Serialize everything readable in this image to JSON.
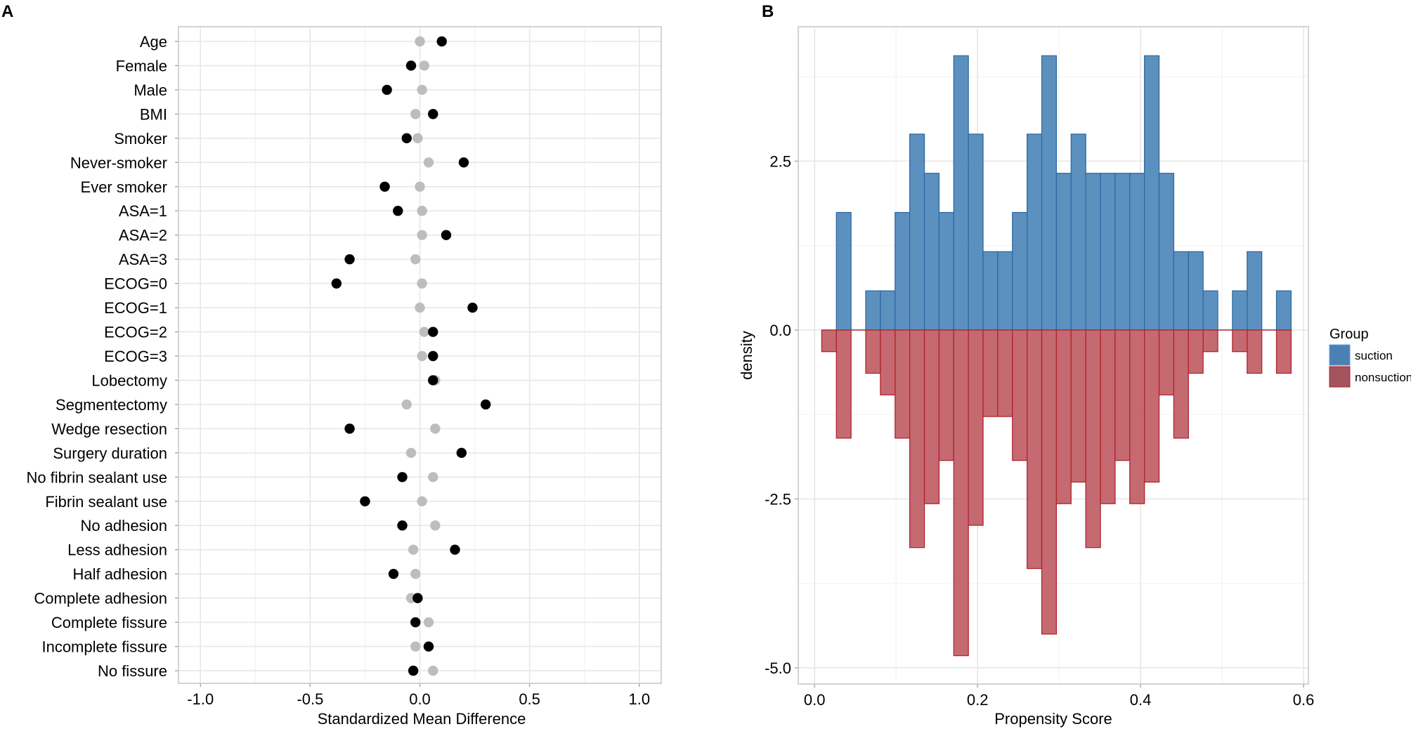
{
  "panels": {
    "a_label": "A",
    "b_label": "B"
  },
  "chart_data": [
    {
      "type": "scatter",
      "panel": "A",
      "xlabel": "Standardized Mean Difference",
      "ylabel": "",
      "xlim": [
        -1.1,
        1.1
      ],
      "xticks": [
        -1.0,
        -0.5,
        0.0,
        0.5,
        1.0
      ],
      "xtick_labels": [
        "-1.0",
        "-0.5",
        "0.0",
        "0.5",
        "1.0"
      ],
      "grid": true,
      "categories": [
        "Age",
        "Female",
        "Male",
        "BMI",
        "Smoker",
        "Never-smoker",
        "Ever smoker",
        "ASA=1",
        "ASA=2",
        "ASA=3",
        "ECOG=0",
        "ECOG=1",
        "ECOG=2",
        "ECOG=3",
        "Lobectomy",
        "Segmentectomy",
        "Wedge resection",
        "Surgery duration",
        "No fibrin sealant use",
        "Fibrin sealant use",
        "No adhesion",
        "Less adhesion",
        "Half adhesion",
        "Complete adhesion",
        "Complete fissure",
        "Incomplete fissure",
        "No fissure"
      ],
      "series": [
        {
          "color": "#bdbdbd",
          "values": [
            0.0,
            0.02,
            0.01,
            -0.02,
            -0.01,
            0.04,
            0.0,
            0.01,
            0.01,
            -0.02,
            0.01,
            0.0,
            0.02,
            0.01,
            0.07,
            -0.06,
            0.07,
            -0.04,
            0.06,
            0.01,
            0.07,
            -0.03,
            -0.02,
            -0.04,
            0.04,
            -0.02,
            0.06
          ]
        },
        {
          "color": "#000000",
          "values": [
            0.1,
            -0.04,
            -0.15,
            0.06,
            -0.06,
            0.2,
            -0.16,
            -0.1,
            0.12,
            -0.32,
            -0.38,
            0.24,
            0.06,
            0.06,
            0.06,
            0.3,
            -0.32,
            0.19,
            -0.08,
            -0.25,
            -0.08,
            0.16,
            -0.12,
            -0.01,
            -0.02,
            0.04,
            -0.03
          ]
        }
      ]
    },
    {
      "type": "bar",
      "subtype": "mirrored-histogram",
      "panel": "B",
      "xlabel": "Propensity Score",
      "ylabel": "density",
      "xlim": [
        -0.02,
        0.606
      ],
      "ylim": [
        -5.24,
        4.49
      ],
      "xticks": [
        0.0,
        0.2,
        0.4,
        0.6
      ],
      "xtick_labels": [
        "0.0",
        "0.2",
        "0.4",
        "0.6"
      ],
      "yticks": [
        -5.0,
        -2.5,
        0.0,
        2.5
      ],
      "ytick_labels": [
        "-5.0",
        "-2.5",
        "0.0",
        "2.5"
      ],
      "grid": true,
      "bin_start": 0.0088,
      "bin_width": 0.018,
      "legend": {
        "title": "Group",
        "position": "right"
      },
      "series": [
        {
          "name": "suction",
          "fill": "#4a84b8",
          "stroke": "#2f6aa6",
          "legend_fill": "#4a80b4",
          "values": [
            0,
            1.74,
            0,
            0.58,
            0.58,
            1.74,
            2.9,
            2.32,
            1.74,
            4.06,
            2.9,
            1.16,
            1.16,
            1.74,
            2.9,
            4.06,
            2.32,
            2.9,
            2.32,
            2.32,
            2.32,
            2.32,
            4.06,
            2.32,
            1.16,
            1.16,
            0.58,
            0,
            0.58,
            1.16,
            0,
            0.58
          ]
        },
        {
          "name": "nonsuction",
          "fill": "#bf5a62",
          "stroke": "#b2232d",
          "legend_fill": "#a3545f",
          "values": [
            -0.32,
            -1.6,
            0,
            -0.64,
            -0.96,
            -1.6,
            -3.22,
            -2.57,
            -1.93,
            -4.82,
            -2.89,
            -1.28,
            -1.28,
            -1.93,
            -3.53,
            -4.5,
            -2.57,
            -2.25,
            -3.22,
            -2.57,
            -1.93,
            -2.57,
            -2.25,
            -0.96,
            -1.6,
            -0.64,
            -0.32,
            0,
            -0.32,
            -0.64,
            0,
            -0.64
          ]
        }
      ]
    }
  ]
}
